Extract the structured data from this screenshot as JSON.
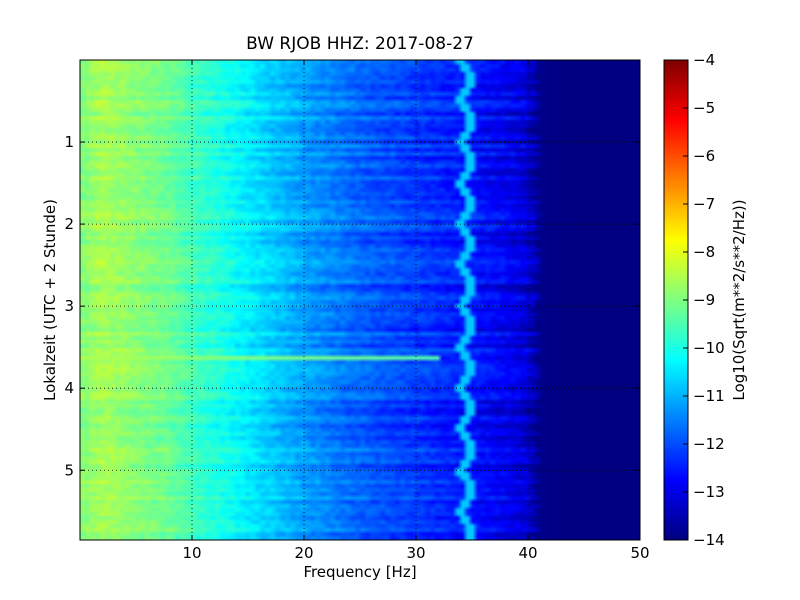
{
  "chart_data": {
    "type": "heatmap",
    "title": "BW RJOB HHZ: 2017-08-27",
    "xlabel": "Frequency [Hz]",
    "ylabel": "Lokalzeit (UTC + 2 Stunde)",
    "xlim": [
      0,
      50
    ],
    "ylim": [
      5.85,
      0
    ],
    "x_ticks": [
      10,
      20,
      30,
      40,
      50
    ],
    "x_tick_labels": [
      "10",
      "20",
      "30",
      "40",
      "50"
    ],
    "y_ticks": [
      1,
      2,
      3,
      4,
      5
    ],
    "y_tick_labels": [
      "1",
      "2",
      "3",
      "4",
      "5"
    ],
    "grid": true,
    "colormap": "jet",
    "colorbar": {
      "label": "Log10(Sqrt(m**2/s**2/Hz))",
      "range": [
        -14,
        -4
      ],
      "ticks": [
        -4,
        -5,
        -6,
        -7,
        -8,
        -9,
        -10,
        -11,
        -12,
        -13,
        -14
      ],
      "tick_labels": [
        "−4",
        "−5",
        "−6",
        "−7",
        "−8",
        "−9",
        "−10",
        "−11",
        "−12",
        "−13",
        "−14"
      ]
    },
    "profile": {
      "frequency_hz": [
        0,
        2,
        5,
        8,
        10,
        12,
        15,
        18,
        20,
        25,
        30,
        35,
        38,
        40,
        41,
        45,
        50
      ],
      "log10_amplitude": [
        -9.0,
        -8.6,
        -8.9,
        -9.2,
        -9.6,
        -9.9,
        -10.4,
        -10.9,
        -11.2,
        -11.8,
        -12.2,
        -12.6,
        -12.9,
        -13.2,
        -13.9,
        -14.0,
        -14.0
      ]
    },
    "features": [
      {
        "type": "horizontal_band",
        "time": 3.62,
        "level": -8.5
      },
      {
        "type": "tonal_line",
        "frequency_hz": 34.5,
        "level": -10.8
      }
    ]
  }
}
